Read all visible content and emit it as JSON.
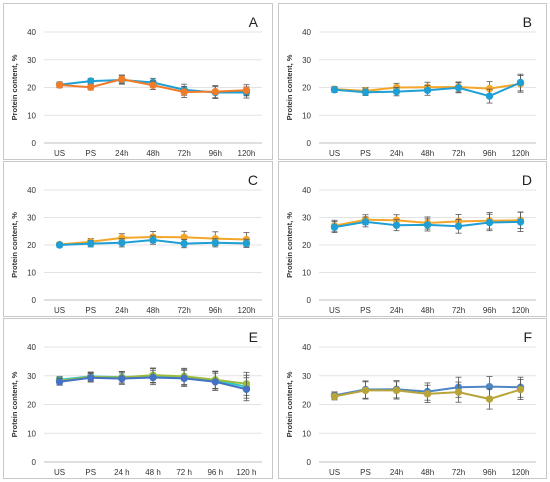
{
  "chart_data": [
    {
      "type": "line",
      "panel": "A",
      "ylabel": "Protein content, %",
      "ylim": [
        0,
        40
      ],
      "yticks": [
        0,
        10,
        20,
        30,
        40
      ],
      "categories": [
        "US",
        "PS",
        "24h",
        "48h",
        "72h",
        "96h",
        "120h"
      ],
      "grid": true,
      "series": [
        {
          "color": "#1f9fd4",
          "marker": "circle",
          "values": [
            21,
            22.3,
            22.7,
            21.8,
            19.2,
            18.2,
            18.2
          ],
          "errors": [
            1.0,
            1.0,
            1.5,
            1.5,
            2.0,
            2.2,
            2.0
          ]
        },
        {
          "color": "#f07c2a",
          "marker": "circle",
          "values": [
            20.9,
            20.1,
            23.0,
            20.8,
            18.4,
            18.5,
            19.0
          ],
          "errors": [
            1.0,
            1.0,
            1.5,
            1.5,
            2.0,
            2.2,
            2.0
          ]
        }
      ]
    },
    {
      "type": "line",
      "panel": "B",
      "ylabel": "Protein content, %",
      "ylim": [
        0,
        40
      ],
      "yticks": [
        0,
        10,
        20,
        30,
        40
      ],
      "categories": [
        "US",
        "PS",
        "24h",
        "48h",
        "72h",
        "96h",
        "120h"
      ],
      "grid": true,
      "series": [
        {
          "color": "#f4a62a",
          "marker": "circle",
          "values": [
            19.4,
            18.8,
            20.0,
            20.1,
            20.2,
            19.6,
            21.3
          ],
          "errors": [
            1.0,
            1.2,
            1.5,
            1.8,
            1.8,
            2.5,
            3.0
          ]
        },
        {
          "color": "#1f9fd4",
          "marker": "circle",
          "values": [
            19.2,
            18.3,
            18.5,
            19.0,
            19.9,
            16.9,
            21.8
          ],
          "errors": [
            1.0,
            1.2,
            1.5,
            1.8,
            1.8,
            2.5,
            3.0
          ]
        }
      ]
    },
    {
      "type": "line",
      "panel": "C",
      "ylabel": "Protein content, %",
      "ylim": [
        0,
        40
      ],
      "yticks": [
        0,
        10,
        20,
        30,
        40
      ],
      "categories": [
        "US",
        "PS",
        "24h",
        "48h",
        "72h",
        "96h",
        "120h"
      ],
      "grid": true,
      "series": [
        {
          "color": "#f4a62a",
          "marker": "circle",
          "values": [
            20.2,
            21.2,
            22.6,
            22.9,
            22.8,
            22.3,
            22.0
          ],
          "errors": [
            0.8,
            1.2,
            1.5,
            2.0,
            2.2,
            2.5,
            2.5
          ]
        },
        {
          "color": "#1f9fd4",
          "marker": "circle",
          "values": [
            20.0,
            20.5,
            20.8,
            21.8,
            20.5,
            20.8,
            20.6
          ],
          "errors": [
            0.8,
            1.2,
            1.5,
            1.5,
            1.5,
            1.5,
            1.5
          ]
        }
      ]
    },
    {
      "type": "line",
      "panel": "D",
      "ylabel": "Protein content, %",
      "ylim": [
        0,
        40
      ],
      "yticks": [
        0,
        10,
        20,
        30,
        40
      ],
      "categories": [
        "US",
        "PS",
        "24h",
        "48h",
        "72h",
        "96h",
        "120h"
      ],
      "grid": true,
      "series": [
        {
          "color": "#f4a62a",
          "marker": "circle",
          "values": [
            27.0,
            29.2,
            29.0,
            28.0,
            28.6,
            28.8,
            29.0
          ],
          "errors": [
            2.0,
            1.8,
            2.0,
            2.2,
            2.5,
            3.0,
            3.0
          ]
        },
        {
          "color": "#1f9fd4",
          "marker": "circle",
          "values": [
            26.5,
            28.4,
            27.2,
            27.3,
            26.8,
            28.2,
            28.4
          ],
          "errors": [
            2.0,
            1.8,
            2.0,
            2.2,
            2.5,
            3.0,
            3.5
          ]
        }
      ]
    },
    {
      "type": "line",
      "panel": "E",
      "ylabel": "Protein content, %",
      "ylim": [
        0,
        40
      ],
      "yticks": [
        0,
        10,
        20,
        30,
        40
      ],
      "categories": [
        "US",
        "PS",
        "24 h",
        "48 h",
        "72 h",
        "96 h",
        "120 h"
      ],
      "grid": true,
      "series": [
        {
          "color": "#2ec5c8",
          "marker": "circle",
          "values": [
            28.6,
            29.8,
            29.5,
            30.0,
            29.5,
            28.4,
            26.2
          ],
          "errors": [
            1.2,
            1.5,
            2.0,
            2.5,
            2.8,
            3.0,
            4.0
          ]
        },
        {
          "color": "#9bbb3a",
          "marker": "circle",
          "values": [
            28.2,
            29.6,
            29.4,
            30.2,
            29.8,
            28.6,
            27.2
          ],
          "errors": [
            1.2,
            1.5,
            2.0,
            2.5,
            2.8,
            3.0,
            4.0
          ]
        },
        {
          "color": "#4472c4",
          "marker": "circle",
          "values": [
            27.9,
            29.3,
            29.0,
            29.4,
            29.1,
            27.9,
            25.3
          ],
          "errors": [
            1.2,
            1.5,
            2.0,
            2.5,
            2.8,
            3.0,
            4.0
          ]
        }
      ]
    },
    {
      "type": "line",
      "panel": "F",
      "ylabel": "Protein content, %",
      "ylim": [
        0,
        40
      ],
      "yticks": [
        0,
        10,
        20,
        30,
        40
      ],
      "categories": [
        "US",
        "PS",
        "24h",
        "48h",
        "72h",
        "96h",
        "120h"
      ],
      "grid": true,
      "series": [
        {
          "color": "#4f86c6",
          "marker": "circle",
          "values": [
            23.2,
            25.2,
            25.3,
            24.5,
            26.0,
            26.2,
            26.0
          ],
          "errors": [
            1.2,
            3.0,
            3.0,
            3.0,
            3.5,
            3.5,
            3.5
          ]
        },
        {
          "color": "#b8a43a",
          "marker": "circle",
          "values": [
            22.8,
            24.9,
            24.9,
            23.7,
            24.3,
            21.9,
            25.2
          ],
          "errors": [
            1.2,
            3.0,
            3.0,
            3.0,
            3.5,
            3.5,
            3.5
          ]
        }
      ]
    }
  ]
}
